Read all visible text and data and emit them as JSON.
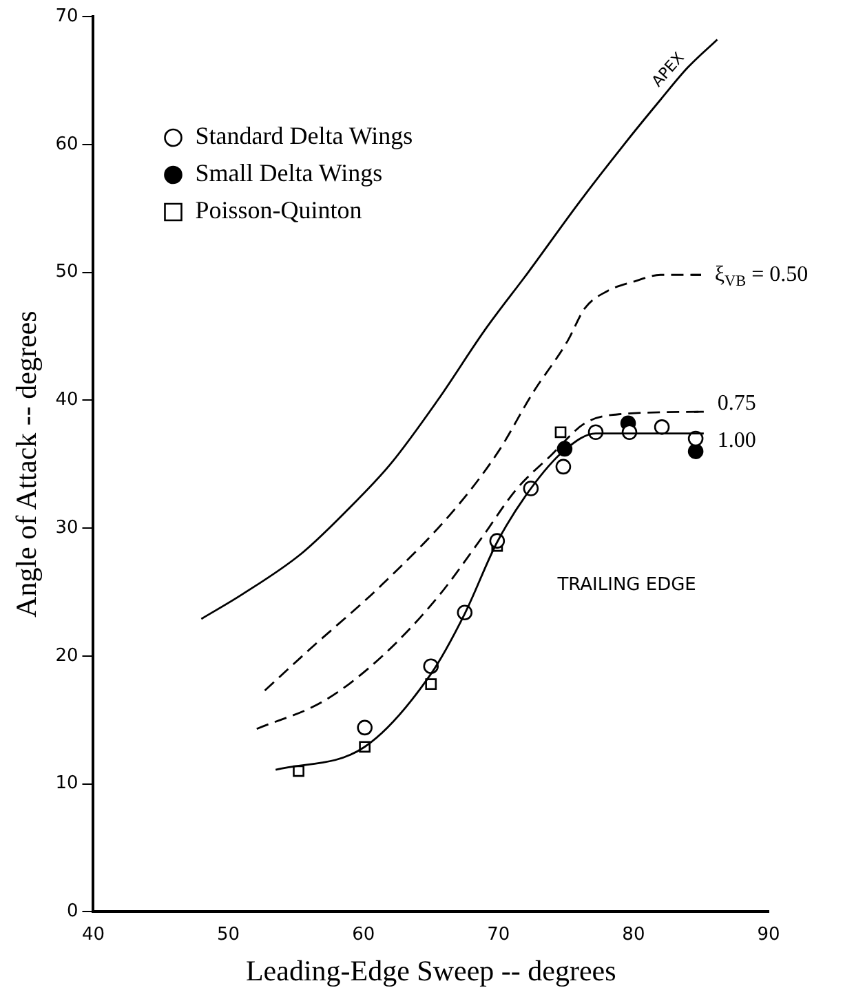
{
  "chart_data": {
    "type": "line",
    "xlabel": "Leading-Edge Sweep -- degrees",
    "ylabel": "Angle of Attack -- degrees",
    "xlim": [
      40,
      90
    ],
    "xticks": [
      40,
      50,
      60,
      70,
      80,
      90
    ],
    "ylim": [
      0,
      70
    ],
    "yticks": [
      0,
      10,
      20,
      30,
      40,
      50,
      60,
      70
    ],
    "grid": false,
    "legend": "top left",
    "series": [
      {
        "color": "#000000",
        "line_style": "solid",
        "marker": "none",
        "x": [
          48,
          51,
          55.4,
          58.8,
          62,
          65.5,
          69,
          72.2,
          76,
          79.3,
          82,
          84,
          86.2
        ],
        "values": [
          22.9,
          24.8,
          28,
          31.4,
          35,
          40,
          45.5,
          50,
          55.5,
          60,
          63.5,
          66,
          68.2
        ]
      },
      {
        "color": "#000000",
        "line_style": "dashed",
        "marker": "none",
        "x": [
          52.7,
          56,
          61.3,
          66.7,
          70,
          72.5,
          75.1,
          76.4,
          78,
          80.1,
          82,
          85
        ],
        "values": [
          17.3,
          20.5,
          25.5,
          31.4,
          36,
          40.5,
          44.6,
          47.2,
          48.5,
          49.3,
          49.8,
          49.8
        ]
      },
      {
        "color": "#000000",
        "line_style": "dashed",
        "marker": "none",
        "x": [
          52.1,
          57.1,
          61.3,
          65.5,
          68.8,
          71.3,
          73.9,
          76.4,
          78.9,
          85.2
        ],
        "values": [
          14.3,
          16.5,
          19.9,
          24.6,
          29.3,
          33,
          35.7,
          38.2,
          38.9,
          39.1
        ]
      },
      {
        "color": "#000000",
        "line_style": "solid",
        "marker": "none",
        "x": [
          53.5,
          60.1,
          65,
          67.5,
          69.9,
          72.4,
          74.9,
          77.2,
          85.2
        ],
        "values": [
          11.1,
          12.9,
          18.6,
          23.3,
          28.9,
          33.1,
          36.1,
          37.4,
          37.4
        ]
      },
      {
        "type": "scatter",
        "name": "Standard Delta Wings",
        "color": "#ffffff",
        "marker": "circle",
        "x": [
          60.1,
          65,
          67.5,
          69.9,
          72.4,
          74.8,
          77.2,
          79.7,
          82.1,
          84.6
        ],
        "values": [
          14.4,
          19.2,
          23.4,
          29,
          33.1,
          34.8,
          37.5,
          37.5,
          37.9,
          37
        ]
      },
      {
        "type": "scatter",
        "name": "Small Delta Wings",
        "color": "#000000",
        "marker": "circle",
        "x": [
          74.9,
          79.6,
          84.6
        ],
        "values": [
          36.2,
          38.2,
          36
        ]
      },
      {
        "type": "scatter",
        "name": "Poisson-Quinton",
        "color": "#ffffff",
        "marker": "square",
        "x": [
          55.2,
          60.1,
          65,
          69.9,
          74.6
        ],
        "values": [
          11,
          12.9,
          17.8,
          28.6,
          37.5
        ]
      }
    ],
    "annotations": [
      "APEX",
      "ξ$_{VB}$ = 0.50",
      "0.75",
      "1.00",
      "TRAILING EDGE"
    ]
  }
}
